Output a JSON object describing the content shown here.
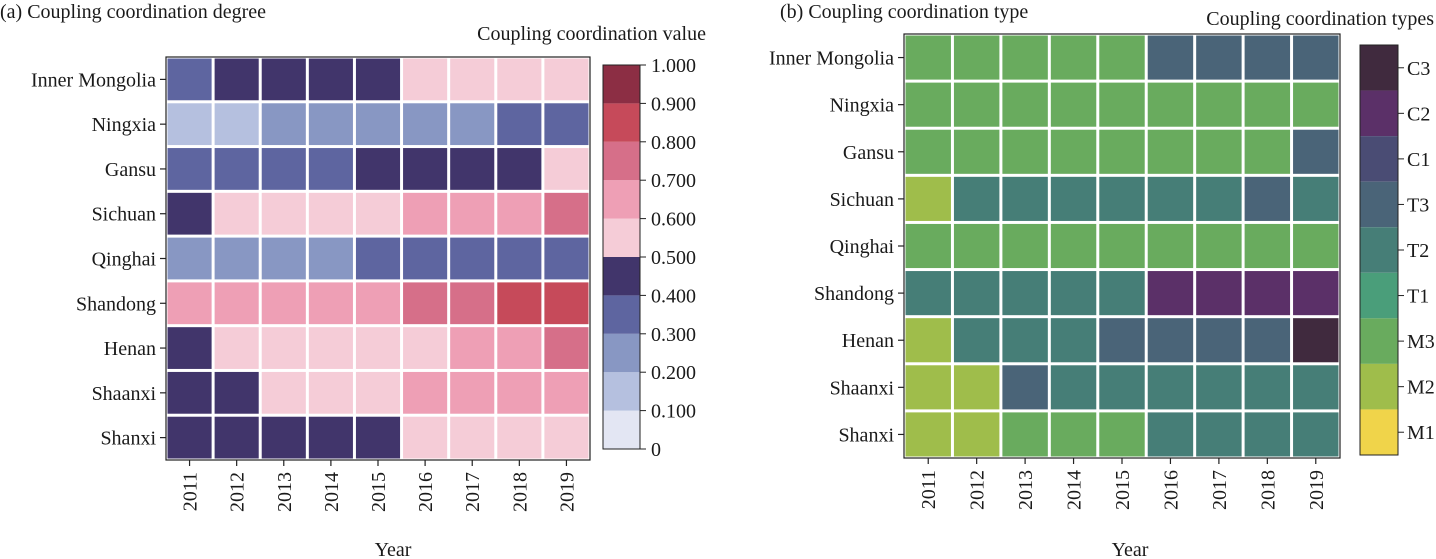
{
  "chart_data": [
    {
      "type": "heatmap",
      "title": "(a) Coupling coordination degree",
      "xlabel": "Year",
      "ylabel": "",
      "legend_title": "Coupling coordination value",
      "x": [
        "2011",
        "2012",
        "2013",
        "2014",
        "2015",
        "2016",
        "2017",
        "2018",
        "2019"
      ],
      "y": [
        "Inner Mongolia",
        "Ningxia",
        "Gansu",
        "Sichuan",
        "Qinghai",
        "Shandong",
        "Henan",
        "Shaanxi",
        "Shanxi"
      ],
      "values": [
        [
          0.35,
          0.45,
          0.45,
          0.45,
          0.45,
          0.55,
          0.55,
          0.55,
          0.55
        ],
        [
          0.15,
          0.15,
          0.25,
          0.25,
          0.25,
          0.25,
          0.25,
          0.35,
          0.35
        ],
        [
          0.35,
          0.35,
          0.35,
          0.35,
          0.45,
          0.45,
          0.45,
          0.45,
          0.55
        ],
        [
          0.45,
          0.55,
          0.55,
          0.55,
          0.55,
          0.65,
          0.65,
          0.65,
          0.75
        ],
        [
          0.25,
          0.25,
          0.25,
          0.25,
          0.35,
          0.35,
          0.35,
          0.35,
          0.35
        ],
        [
          0.65,
          0.65,
          0.65,
          0.65,
          0.65,
          0.75,
          0.75,
          0.85,
          0.85
        ],
        [
          0.45,
          0.55,
          0.55,
          0.55,
          0.55,
          0.55,
          0.65,
          0.65,
          0.75
        ],
        [
          0.45,
          0.45,
          0.55,
          0.55,
          0.55,
          0.65,
          0.65,
          0.65,
          0.65
        ],
        [
          0.45,
          0.45,
          0.45,
          0.45,
          0.45,
          0.55,
          0.55,
          0.55,
          0.55
        ]
      ],
      "colorbar": {
        "ticks": [
          "0",
          "0.100",
          "0.200",
          "0.300",
          "0.400",
          "0.500",
          "0.600",
          "0.700",
          "0.800",
          "0.900",
          "1.000"
        ],
        "colors": [
          "#e3e6f3",
          "#b5c0df",
          "#8897c3",
          "#5e65a0",
          "#41356b",
          "#f5ccd7",
          "#ee9fb5",
          "#d66f89",
          "#c64a5a",
          "#8c2e44"
        ]
      }
    },
    {
      "type": "heatmap",
      "title": "(b) Coupling coordination type",
      "xlabel": "Year",
      "ylabel": "",
      "legend_title": "Coupling coordination types",
      "x": [
        "2011",
        "2012",
        "2013",
        "2014",
        "2015",
        "2016",
        "2017",
        "2018",
        "2019"
      ],
      "y": [
        "Inner Mongolia",
        "Ningxia",
        "Gansu",
        "Sichuan",
        "Qinghai",
        "Shandong",
        "Henan",
        "Shaanxi",
        "Shanxi"
      ],
      "values": [
        [
          "M3",
          "M3",
          "M3",
          "M3",
          "M3",
          "T3",
          "T3",
          "T3",
          "T3"
        ],
        [
          "M3",
          "M3",
          "M3",
          "M3",
          "M3",
          "M3",
          "M3",
          "M3",
          "M3"
        ],
        [
          "M3",
          "M3",
          "M3",
          "M3",
          "M3",
          "M3",
          "M3",
          "M3",
          "T3"
        ],
        [
          "M2",
          "T2",
          "T2",
          "T2",
          "T2",
          "T2",
          "T2",
          "T3",
          "T2"
        ],
        [
          "M3",
          "M3",
          "M3",
          "M3",
          "M3",
          "M3",
          "M3",
          "M3",
          "M3"
        ],
        [
          "T2",
          "T2",
          "T2",
          "T2",
          "T2",
          "C2",
          "C2",
          "C2",
          "C2"
        ],
        [
          "M2",
          "T2",
          "T2",
          "T2",
          "T3",
          "T3",
          "T3",
          "T3",
          "C3"
        ],
        [
          "M2",
          "M2",
          "T3",
          "T2",
          "T2",
          "T2",
          "T2",
          "T2",
          "T2"
        ],
        [
          "M2",
          "M2",
          "M3",
          "M3",
          "M3",
          "T2",
          "T2",
          "T2",
          "T2"
        ]
      ],
      "categories": [
        "C3",
        "C2",
        "C1",
        "T3",
        "T2",
        "T1",
        "M3",
        "M2",
        "M1"
      ],
      "category_colors": {
        "C3": "#402a3e",
        "C2": "#5b3068",
        "C1": "#4a4c74",
        "T3": "#4a6478",
        "T2": "#467e77",
        "T1": "#4a9e7a",
        "M3": "#69ab5e",
        "M2": "#9fbd4b",
        "M1": "#f0d44a"
      }
    }
  ]
}
